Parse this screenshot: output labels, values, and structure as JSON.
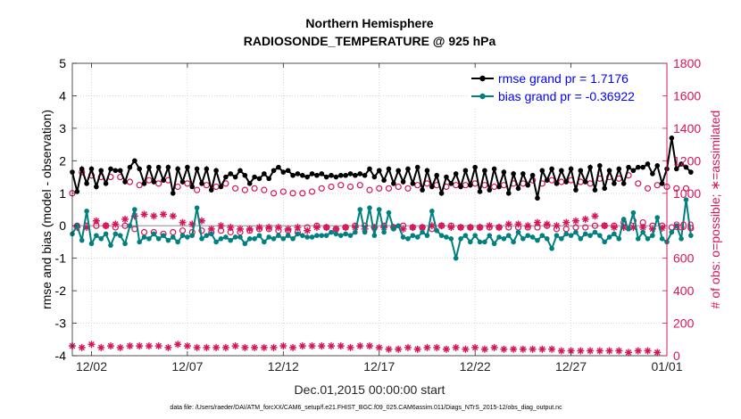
{
  "chart_data": {
    "type": "line",
    "title": "Northern Hemisphere",
    "subtitle": "RADIOSONDE_TEMPERATURE @ 925 hPa",
    "xlabel": "Dec.01,2015 00:00:00 start",
    "ylabel_left": "rmse and bias (model - observation)",
    "ylabel_right": "# of obs: o=possible; ∗=assimilated",
    "footnote": "data file: /Users/raeder/DAI/ATM_forcXX/CAM6_setup/f.e21.FHIST_BGC.f09_025.CAM6assim.011/Diags_NTrS_2015-12/obs_diag_output.nc",
    "xlim": [
      0,
      31
    ],
    "ylim_left": [
      -4,
      5
    ],
    "ylim_right": [
      0,
      1800
    ],
    "x_ticks": [
      {
        "value": 1,
        "label": "12/02"
      },
      {
        "value": 6,
        "label": "12/07"
      },
      {
        "value": 11,
        "label": "12/12"
      },
      {
        "value": 16,
        "label": "12/17"
      },
      {
        "value": 21,
        "label": "12/22"
      },
      {
        "value": 26,
        "label": "12/27"
      },
      {
        "value": 31,
        "label": "01/01"
      }
    ],
    "y_ticks_left": [
      "-4",
      "-3",
      "-2",
      "-1",
      "0",
      "1",
      "2",
      "3",
      "4",
      "5"
    ],
    "y_ticks_right": [
      "0",
      "200",
      "400",
      "600",
      "800",
      "1000",
      "1200",
      "1400",
      "1600",
      "1800"
    ],
    "zero_line": 0,
    "legend": {
      "position": "top-right",
      "rmse_label": "rmse grand pr = 1.7176",
      "bias_label": "bias grand pr = -0.36922"
    },
    "colors": {
      "rmse": "#000000",
      "bias": "#008080",
      "obs": "#d6145a",
      "axis": "#262626",
      "grid": "#bdbdbd"
    },
    "x_start": 0,
    "x_step": 0.25,
    "series": [
      {
        "name": "rmse",
        "axis": "left",
        "values": [
          1.65,
          1.05,
          1.75,
          1.3,
          1.75,
          1.2,
          1.7,
          1.3,
          1.75,
          1.7,
          1.7,
          1.35,
          1.8,
          2.0,
          1.75,
          1.3,
          1.8,
          1.35,
          1.8,
          1.4,
          1.8,
          1.0,
          1.75,
          1.35,
          1.8,
          1.2,
          1.75,
          1.3,
          1.75,
          1.1,
          1.7,
          1.2,
          1.5,
          1.6,
          1.5,
          1.7,
          1.55,
          1.3,
          1.5,
          1.45,
          1.6,
          1.45,
          1.7,
          1.8,
          1.65,
          1.7,
          1.55,
          1.6,
          1.55,
          1.5,
          1.6,
          1.55,
          1.6,
          1.5,
          1.55,
          1.5,
          1.55,
          1.55,
          1.6,
          1.55,
          1.6,
          1.55,
          1.75,
          1.5,
          1.7,
          1.4,
          1.75,
          1.3,
          1.7,
          1.35,
          1.75,
          1.3,
          1.8,
          1.1,
          1.7,
          1.2,
          1.55,
          1.0,
          1.5,
          1.3,
          1.6,
          1.2,
          1.7,
          1.25,
          1.8,
          1.05,
          1.7,
          1.1,
          1.75,
          1.2,
          1.65,
          1.0,
          1.6,
          1.15,
          1.6,
          1.25,
          1.55,
          0.85,
          1.7,
          1.4,
          1.75,
          1.3,
          1.7,
          1.35,
          1.75,
          1.1,
          1.7,
          1.35,
          1.8,
          1.1,
          1.85,
          1.15,
          1.7,
          1.3,
          1.75,
          1.3,
          1.8,
          1.7,
          1.8,
          1.8,
          1.9,
          1.6,
          1.85,
          1.3,
          1.75,
          2.7,
          1.75,
          1.9,
          1.8,
          1.65
        ],
        "marker": "filled-circle"
      },
      {
        "name": "bias",
        "axis": "left",
        "values": [
          -0.25,
          0.0,
          -0.45,
          0.45,
          -0.55,
          -0.3,
          -0.4,
          -0.25,
          -0.6,
          -0.25,
          -0.3,
          -0.55,
          0.0,
          0.5,
          -0.5,
          -0.35,
          -0.4,
          -0.25,
          -0.4,
          -0.3,
          -0.45,
          -0.35,
          -0.5,
          -0.3,
          -0.35,
          -0.3,
          0.55,
          -0.4,
          -0.3,
          -0.25,
          -0.5,
          -0.4,
          -0.35,
          -0.45,
          -0.35,
          -0.35,
          -0.55,
          -0.4,
          -0.4,
          -0.3,
          -0.5,
          -0.35,
          -0.4,
          -0.3,
          -0.4,
          -0.3,
          -0.4,
          -0.25,
          -0.3,
          -0.35,
          -0.35,
          -0.3,
          -0.3,
          -0.3,
          -0.2,
          -0.25,
          -0.3,
          -0.25,
          -0.3,
          -0.2,
          0.5,
          -0.2,
          0.55,
          -0.3,
          0.5,
          -0.2,
          0.4,
          -0.1,
          0.0,
          -0.35,
          -0.4,
          -0.3,
          -0.35,
          -0.2,
          -0.3,
          0.45,
          -0.15,
          -0.3,
          -0.35,
          -0.4,
          -1.0,
          -0.4,
          -0.3,
          -0.5,
          -0.3,
          -0.5,
          -0.5,
          -0.3,
          -0.55,
          -0.35,
          -0.4,
          -0.3,
          -0.5,
          -0.2,
          -0.4,
          -0.3,
          -0.35,
          -0.45,
          -0.3,
          -0.4,
          -0.7,
          -0.3,
          -0.4,
          -0.25,
          -0.3,
          -0.2,
          -0.4,
          -0.25,
          -0.3,
          -0.2,
          -0.3,
          -0.5,
          -0.35,
          -0.25,
          -0.4,
          0.2,
          -0.1,
          0.4,
          -0.4,
          -0.2,
          -0.4,
          -0.3,
          0.25,
          -0.4,
          -0.5,
          -0.2,
          0.0,
          -0.4,
          0.8,
          -0.3
        ],
        "marker": "filled-circle"
      },
      {
        "name": "obs possible (00Z/12Z)",
        "axis": "right",
        "marker": "open-circle",
        "values": [
          1000,
          800,
          1130,
          800,
          1110,
          800,
          1100,
          800,
          1100,
          790,
          1100,
          800,
          1070,
          780,
          1050,
          760,
          1080,
          760,
          1060,
          750,
          1080,
          760,
          1040,
          770,
          1060,
          760,
          1020,
          770,
          1050,
          760,
          1040,
          770,
          1060,
          760,
          1030,
          760,
          1020,
          770,
          1030,
          780,
          1020,
          780,
          1000,
          770,
          1010,
          770,
          1000,
          760,
          1000,
          790,
          1010,
          800,
          1030,
          790,
          1040,
          780,
          1050,
          790,
          1040,
          800,
          1050,
          800,
          1020,
          790,
          1030,
          800,
          1030,
          790,
          1040,
          800,
          1030,
          790,
          1050,
          790,
          1060,
          780,
          1050,
          800,
          1040,
          800,
          1050,
          790,
          1050,
          790,
          1060,
          790,
          1050,
          790,
          1040,
          790,
          1050,
          790,
          1060,
          790,
          1060,
          790,
          1080,
          790,
          1060,
          800,
          1080,
          780,
          1070,
          780,
          1080,
          790,
          1070,
          790,
          1060,
          800,
          1090,
          800,
          1100,
          800,
          1090,
          820,
          1110,
          830,
          1060,
          820,
          1030,
          800,
          1050,
          800,
          1040,
          790,
          1030,
          790,
          1030,
          785
        ]
      },
      {
        "name": "obs assimilated (00Z/12Z)",
        "axis": "right",
        "marker": "asterisk",
        "values": [
          60,
          790,
          50,
          790,
          70,
          830,
          50,
          800,
          60,
          810,
          50,
          840,
          60,
          860,
          60,
          870,
          60,
          860,
          60,
          870,
          50,
          860,
          70,
          820,
          60,
          810,
          50,
          830,
          50,
          780,
          50,
          800,
          50,
          790,
          60,
          780,
          50,
          780,
          50,
          790,
          50,
          790,
          50,
          790,
          60,
          780,
          50,
          790,
          60,
          770,
          60,
          790,
          60,
          790,
          60,
          780,
          60,
          790,
          50,
          790,
          60,
          780,
          60,
          790,
          50,
          790,
          40,
          790,
          40,
          780,
          50,
          790,
          40,
          790,
          50,
          800,
          50,
          800,
          40,
          790,
          50,
          790,
          40,
          790,
          50,
          790,
          40,
          800,
          50,
          790,
          40,
          810,
          40,
          810,
          40,
          800,
          40,
          820,
          40,
          810,
          40,
          800,
          30,
          820,
          30,
          830,
          30,
          840,
          30,
          860,
          30,
          800,
          30,
          790,
          30,
          790,
          20,
          790,
          30,
          790,
          30,
          780,
          20,
          785
        ]
      }
    ]
  }
}
